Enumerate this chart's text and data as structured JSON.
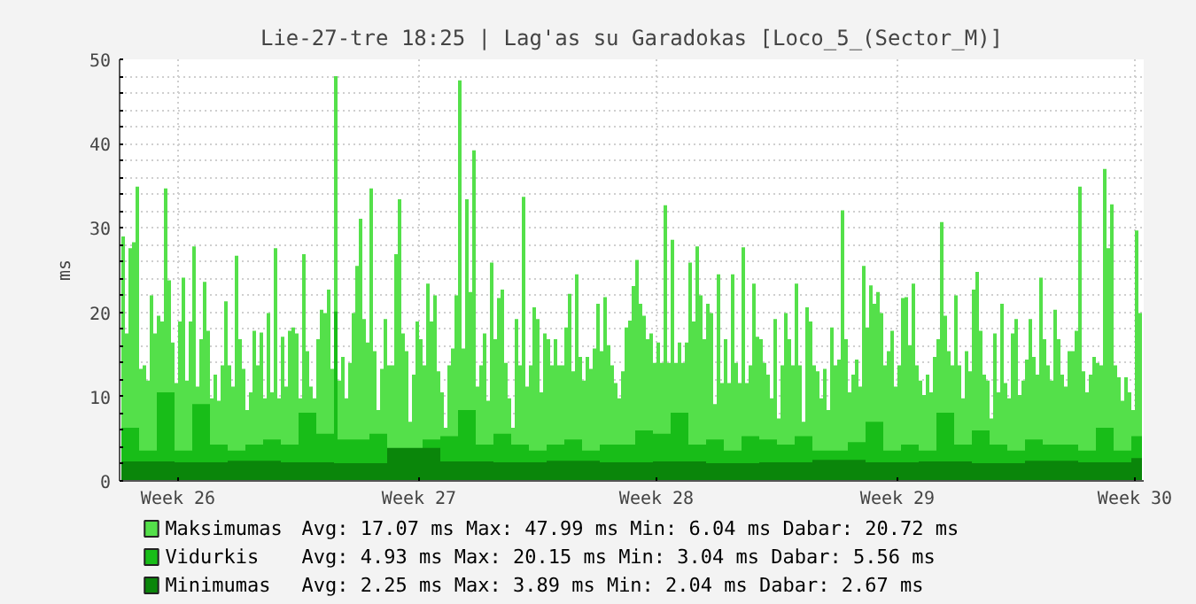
{
  "chart_data": {
    "type": "area",
    "title": "Lie-27-tre 18:25 | Lag'as su Garadokas [Loco_5_(Sector_M)]",
    "ylabel": "ms",
    "categories": [
      null,
      null,
      null,
      null,
      null,
      null,
      null,
      null,
      null,
      null,
      null,
      null,
      null,
      null,
      null,
      null,
      "Week 26",
      null,
      null,
      null,
      null,
      null,
      null,
      null,
      null,
      null,
      null,
      null,
      null,
      null,
      null,
      null,
      null,
      null,
      null,
      null,
      null,
      null,
      null,
      null,
      null,
      null,
      null,
      null,
      null,
      null,
      null,
      null,
      null,
      null,
      null,
      null,
      null,
      null,
      null,
      null,
      null,
      null,
      null,
      null,
      null,
      null,
      null,
      null,
      null,
      null,
      null,
      null,
      null,
      null,
      null,
      null,
      null,
      null,
      null,
      null,
      null,
      null,
      null,
      null,
      null,
      null,
      null,
      null,
      "Week 27",
      null,
      null,
      null,
      null,
      null,
      null,
      null,
      null,
      null,
      null,
      null,
      null,
      null,
      null,
      null,
      null,
      null,
      null,
      null,
      null,
      null,
      null,
      null,
      null,
      null,
      null,
      null,
      null,
      null,
      null,
      null,
      null,
      null,
      null,
      null,
      null,
      null,
      null,
      null,
      null,
      null,
      null,
      null,
      null,
      null,
      null,
      null,
      null,
      null,
      null,
      null,
      null,
      null,
      null,
      null,
      null,
      null,
      null,
      null,
      null,
      null,
      null,
      null,
      null,
      null,
      null,
      "Week 28",
      null,
      null,
      null,
      null,
      null,
      null,
      null,
      null,
      null,
      null,
      null,
      null,
      null,
      null,
      null,
      null,
      null,
      null,
      null,
      null,
      null,
      null,
      null,
      null,
      null,
      null,
      null,
      null,
      null,
      null,
      null,
      null,
      null,
      null,
      null,
      null,
      null,
      null,
      null,
      null,
      null,
      null,
      null,
      null,
      null,
      null,
      null,
      null,
      null,
      null,
      null,
      null,
      null,
      null,
      null,
      null,
      null,
      null,
      null,
      null,
      null,
      null,
      null,
      null,
      null,
      null,
      null,
      "Week 29",
      null,
      null,
      null,
      null,
      null,
      null,
      null,
      null,
      null,
      null,
      null,
      null,
      null,
      null,
      null,
      null,
      null,
      null,
      null,
      null,
      null,
      null,
      null,
      null,
      null,
      null,
      null,
      null,
      null,
      null,
      null,
      null,
      null,
      null,
      null,
      null,
      null,
      null,
      null,
      null,
      null,
      null,
      null,
      null,
      null,
      null,
      null,
      null,
      null,
      null,
      null,
      null,
      null,
      null,
      null,
      null,
      null,
      null,
      null,
      null,
      null,
      null,
      null,
      null,
      null,
      null,
      "Week 30",
      null,
      null
    ],
    "series": [
      {
        "name": "Maksimumas",
        "color": "#54e04a",
        "values": [
          29,
          17.5,
          27.6,
          28.3,
          34.9,
          13.3,
          13.7,
          11.9,
          22,
          17.5,
          19.6,
          18.9,
          34.7,
          23.8,
          16.4,
          11.6,
          18.9,
          24.1,
          11.9,
          18.9,
          27.8,
          11.2,
          16.8,
          23.6,
          17.8,
          9.8,
          12.6,
          9.5,
          13.7,
          21.3,
          13.7,
          11.2,
          26.7,
          16.8,
          13.3,
          8.4,
          10.5,
          17.8,
          13.7,
          17.6,
          9.8,
          19.9,
          10.5,
          27.6,
          9.8,
          17.1,
          11.2,
          17.8,
          18.2,
          17.5,
          9.8,
          26.9,
          15.4,
          11.2,
          9.8,
          16.8,
          20.3,
          19.9,
          22.7,
          13.3,
          48.0,
          11.9,
          14.7,
          9.8,
          14,
          19.9,
          25.5,
          31.1,
          19.2,
          16.4,
          34.7,
          15.4,
          8.4,
          13.3,
          19.2,
          13.7,
          13.7,
          26.9,
          33.4,
          17.5,
          15.4,
          7,
          12.6,
          18.9,
          16.8,
          13.7,
          23.4,
          18.9,
          22,
          13,
          10.5,
          6.3,
          13.7,
          15.7,
          22,
          47.5,
          15.7,
          33.4,
          22.4,
          39.2,
          11.2,
          13.7,
          17.5,
          9.5,
          25.9,
          16.8,
          21.7,
          22.7,
          14,
          9.8,
          6.3,
          19.2,
          13.7,
          33.7,
          11.2,
          13.7,
          20.6,
          19.2,
          10.5,
          17.5,
          16.8,
          13.7,
          16.8,
          13.7,
          13.7,
          18.2,
          22.2,
          13,
          24.5,
          14.7,
          11.9,
          14.7,
          13.3,
          15.7,
          21,
          15.4,
          21.8,
          16.1,
          13.7,
          11.6,
          9.8,
          13,
          18.2,
          19,
          23.1,
          26.2,
          21,
          19.6,
          16.8,
          17.5,
          14,
          16.4,
          14,
          32.7,
          14,
          28.6,
          14,
          16.4,
          14,
          16.4,
          25.9,
          18.9,
          27.8,
          22,
          16.8,
          21,
          19.9,
          9.1,
          24.5,
          11.6,
          16.8,
          11.6,
          24.5,
          14,
          11.6,
          27.7,
          11.6,
          13.7,
          23.4,
          17.1,
          16.8,
          14,
          12.6,
          9.8,
          19.2,
          7.4,
          13.7,
          19.9,
          16.8,
          13.7,
          23.4,
          13.7,
          7,
          20.6,
          18.9,
          13.7,
          13,
          9.8,
          13.3,
          8.4,
          18.2,
          13.7,
          14.4,
          32.1,
          16.8,
          10.5,
          12.6,
          14.4,
          11.2,
          25.5,
          18.2,
          23.2,
          21,
          22.4,
          19.9,
          13.7,
          15.4,
          17.8,
          11.2,
          13.7,
          21.7,
          21.8,
          16.1,
          23.4,
          13.7,
          11.9,
          10.2,
          12.6,
          10.5,
          14.7,
          16.8,
          30.7,
          19.6,
          15.4,
          13.7,
          22,
          13.7,
          9.8,
          15.4,
          13,
          22.7,
          24.8,
          17.8,
          12.6,
          11.9,
          7.4,
          17.5,
          10.5,
          21,
          11.6,
          9.8,
          17.5,
          19.2,
          10.2,
          11.9,
          14.4,
          19.2,
          14.7,
          12.6,
          24.1,
          16.8,
          13.7,
          11.9,
          20.3,
          16.8,
          12.6,
          11.2,
          15.4,
          15.4,
          17.8,
          34.9,
          13,
          10.5,
          12.6,
          14.7,
          14,
          13.7,
          37,
          27.6,
          32.8,
          13.7,
          12.3,
          9.5,
          12.3,
          10.5,
          8.4,
          29.7,
          19.9,
          7.4
        ]
      },
      {
        "name": "Vidurkis",
        "color": "#18bd18",
        "values": [
          6.3,
          6.3,
          6.3,
          6.3,
          6.3,
          3.6,
          3.6,
          3.6,
          3.6,
          3.6,
          10.5,
          10.5,
          10.5,
          10.5,
          10.5,
          3.6,
          3.6,
          3.6,
          3.6,
          3.6,
          9.1,
          9.1,
          9.1,
          9.1,
          9.1,
          4.3,
          4.3,
          4.3,
          4.3,
          4.3,
          3.6,
          3.6,
          3.6,
          3.6,
          3.6,
          4.3,
          4.3,
          4.3,
          4.3,
          4.3,
          4.9,
          4.9,
          4.9,
          4.9,
          4.9,
          4.3,
          4.3,
          4.3,
          4.3,
          4.3,
          8.1,
          8.1,
          8.1,
          8.1,
          8.1,
          5.6,
          5.6,
          5.6,
          5.6,
          5.6,
          20.1,
          4.9,
          4.9,
          4.9,
          4.9,
          4.9,
          4.9,
          4.9,
          4.9,
          4.9,
          5.6,
          5.6,
          5.6,
          5.6,
          5.6,
          3.6,
          3.6,
          3.6,
          3.6,
          3.6,
          3.6,
          3.6,
          3.6,
          3.6,
          3.6,
          4.9,
          4.9,
          4.9,
          4.9,
          4.9,
          5.3,
          5.3,
          5.3,
          5.3,
          5.3,
          8.4,
          8.4,
          8.4,
          8.4,
          8.4,
          4.3,
          4.3,
          4.3,
          4.3,
          4.3,
          5.6,
          5.6,
          5.6,
          5.6,
          5.6,
          4.3,
          4.3,
          4.3,
          4.3,
          4.3,
          3.6,
          3.6,
          3.6,
          3.6,
          3.6,
          4.3,
          4.3,
          4.3,
          4.3,
          4.3,
          4.9,
          4.9,
          4.9,
          4.9,
          4.9,
          3.6,
          3.6,
          3.6,
          3.6,
          3.6,
          4.3,
          4.3,
          4.3,
          4.3,
          4.3,
          4.3,
          4.3,
          4.3,
          4.3,
          4.3,
          6,
          6,
          6,
          6,
          6,
          5.6,
          5.6,
          5.6,
          5.6,
          5.6,
          8.1,
          8.1,
          8.1,
          8.1,
          8.1,
          4.3,
          4.3,
          4.3,
          4.3,
          4.3,
          4.9,
          4.9,
          4.9,
          4.9,
          4.9,
          3.6,
          3.6,
          3.6,
          3.6,
          3.6,
          5.3,
          5.3,
          5.3,
          5.3,
          5.3,
          4.9,
          4.9,
          4.9,
          4.9,
          4.9,
          4.3,
          4.3,
          4.3,
          4.3,
          4.3,
          5.3,
          5.3,
          5.3,
          5.3,
          5.3,
          3.6,
          3.6,
          3.6,
          3.6,
          3.6,
          3.6,
          3.6,
          3.6,
          3.6,
          3.6,
          4.6,
          4.6,
          4.6,
          4.6,
          4.6,
          7,
          7,
          7,
          7,
          7,
          3.6,
          3.6,
          3.6,
          3.6,
          3.6,
          4.3,
          4.3,
          4.3,
          4.3,
          4.3,
          3.6,
          3.6,
          3.6,
          3.6,
          3.6,
          8.1,
          8.1,
          8.1,
          8.1,
          8.1,
          4.3,
          4.3,
          4.3,
          4.3,
          4.3,
          6,
          6,
          6,
          6,
          6,
          4.3,
          4.3,
          4.3,
          4.3,
          4.3,
          3.6,
          3.6,
          3.6,
          3.6,
          3.6,
          4.9,
          4.9,
          4.9,
          4.9,
          4.9,
          4.3,
          4.3,
          4.3,
          4.3,
          4.3,
          4.3,
          4.3,
          4.3,
          4.3,
          4.3,
          3.6,
          3.6,
          3.6,
          3.6,
          3.6,
          6.3,
          6.3,
          6.3,
          6.3,
          6.3,
          3.6,
          3.6,
          3.6,
          3.6,
          3.6,
          5.3,
          5.3,
          5.3,
          5.3
        ]
      },
      {
        "name": "Minimumas",
        "color": "#0a860a",
        "values": [
          2.3,
          2.3,
          2.3,
          2.3,
          2.3,
          2.3,
          2.3,
          2.3,
          2.3,
          2.3,
          2.3,
          2.3,
          2.3,
          2.3,
          2.3,
          2.2,
          2.2,
          2.2,
          2.2,
          2.2,
          2.2,
          2.2,
          2.2,
          2.2,
          2.2,
          2.2,
          2.2,
          2.2,
          2.2,
          2.2,
          2.4,
          2.4,
          2.4,
          2.4,
          2.4,
          2.4,
          2.4,
          2.4,
          2.4,
          2.4,
          2.4,
          2.4,
          2.4,
          2.4,
          2.4,
          2.2,
          2.2,
          2.2,
          2.2,
          2.2,
          2.2,
          2.2,
          2.2,
          2.2,
          2.2,
          2.2,
          2.2,
          2.2,
          2.2,
          2.2,
          2.1,
          2.1,
          2.1,
          2.1,
          2.1,
          2.1,
          2.1,
          2.1,
          2.1,
          2.1,
          2.1,
          2.1,
          2.1,
          2.1,
          2.1,
          3.9,
          3.9,
          3.9,
          3.9,
          3.9,
          3.9,
          3.9,
          3.9,
          3.9,
          3.9,
          3.9,
          3.9,
          3.9,
          3.9,
          3.9,
          2.3,
          2.3,
          2.3,
          2.3,
          2.3,
          2.3,
          2.3,
          2.3,
          2.3,
          2.3,
          2.3,
          2.3,
          2.3,
          2.3,
          2.3,
          2.2,
          2.2,
          2.2,
          2.2,
          2.2,
          2.2,
          2.2,
          2.2,
          2.2,
          2.2,
          2.2,
          2.2,
          2.2,
          2.2,
          2.2,
          2.4,
          2.4,
          2.4,
          2.4,
          2.4,
          2.4,
          2.4,
          2.4,
          2.4,
          2.4,
          2.4,
          2.4,
          2.4,
          2.4,
          2.4,
          2.2,
          2.2,
          2.2,
          2.2,
          2.2,
          2.2,
          2.2,
          2.2,
          2.2,
          2.2,
          2.2,
          2.2,
          2.2,
          2.2,
          2.2,
          2.3,
          2.3,
          2.3,
          2.3,
          2.3,
          2.3,
          2.3,
          2.3,
          2.3,
          2.3,
          2.3,
          2.3,
          2.3,
          2.3,
          2.3,
          2.1,
          2.1,
          2.1,
          2.1,
          2.1,
          2.1,
          2.1,
          2.1,
          2.1,
          2.1,
          2.1,
          2.1,
          2.1,
          2.1,
          2.1,
          2.2,
          2.2,
          2.2,
          2.2,
          2.2,
          2.2,
          2.2,
          2.2,
          2.2,
          2.2,
          2.2,
          2.2,
          2.2,
          2.2,
          2.2,
          2.5,
          2.5,
          2.5,
          2.5,
          2.5,
          2.5,
          2.5,
          2.5,
          2.5,
          2.5,
          2.5,
          2.5,
          2.5,
          2.5,
          2.5,
          2.2,
          2.2,
          2.2,
          2.2,
          2.2,
          2.2,
          2.2,
          2.2,
          2.2,
          2.2,
          2.2,
          2.2,
          2.2,
          2.2,
          2.2,
          2.3,
          2.3,
          2.3,
          2.3,
          2.3,
          2.3,
          2.3,
          2.3,
          2.3,
          2.3,
          2.3,
          2.3,
          2.3,
          2.3,
          2.3,
          2.1,
          2.1,
          2.1,
          2.1,
          2.1,
          2.1,
          2.1,
          2.1,
          2.1,
          2.1,
          2.1,
          2.1,
          2.1,
          2.1,
          2.1,
          2.4,
          2.4,
          2.4,
          2.4,
          2.4,
          2.4,
          2.4,
          2.4,
          2.4,
          2.4,
          2.4,
          2.4,
          2.4,
          2.4,
          2.4,
          2.2,
          2.2,
          2.2,
          2.2,
          2.2,
          2.2,
          2.2,
          2.2,
          2.2,
          2.2,
          2.2,
          2.2,
          2.2,
          2.2,
          2.2,
          2.7,
          2.7,
          2.7,
          2.7
        ]
      }
    ],
    "annotations": [
      "Avg:  17.07 ms   Max:  47.99 ms   Min:   6.04 ms   Dabar:  20.72 ms",
      "Avg:   4.93 ms   Max:  20.15 ms   Min:   3.04 ms   Dabar:   5.56 ms",
      "Avg:   2.25 ms    Max:   3.89 ms    Min:   2.04 ms    Dabar:   2.67 ms"
    ],
    "ylim": [
      0,
      50
    ],
    "yticks": [
      0,
      {
        "value": 2,
        "label": null
      },
      {
        "value": 4,
        "label": null
      },
      {
        "value": 6,
        "label": null
      },
      {
        "value": 8,
        "label": null
      },
      10,
      {
        "value": 12,
        "label": null
      },
      {
        "value": 14,
        "label": null
      },
      {
        "value": 16,
        "label": null
      },
      {
        "value": 18,
        "label": null
      },
      20,
      {
        "value": 22,
        "label": null
      },
      {
        "value": 24,
        "label": null
      },
      {
        "value": 26,
        "label": null
      },
      {
        "value": 28,
        "label": null
      },
      30,
      {
        "value": 32,
        "label": null
      },
      {
        "value": 34,
        "label": null
      },
      {
        "value": 36,
        "label": null
      },
      {
        "value": 38,
        "label": null
      },
      40,
      {
        "value": 42,
        "label": null
      },
      {
        "value": 44,
        "label": null
      },
      {
        "value": 46,
        "label": null
      },
      {
        "value": 48,
        "label": null
      },
      50
    ],
    "grid": true,
    "legend": "bottom"
  }
}
